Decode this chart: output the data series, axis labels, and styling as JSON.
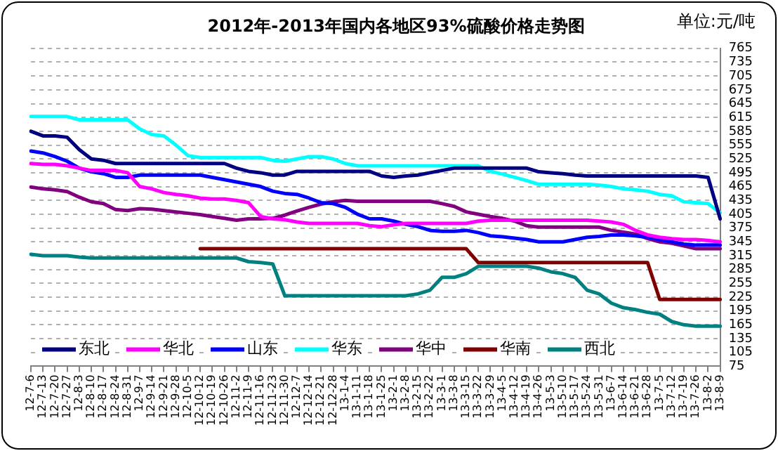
{
  "chart_data": {
    "type": "line",
    "title": "2012年-2013年国内各地区93%硫酸价格走势图",
    "annotations": [
      "单位:元/吨"
    ],
    "categories": [
      "12-7-6",
      "12-7-13",
      "12-7-20",
      "12-7-27",
      "12-8-3",
      "12-8-10",
      "12-8-17",
      "12-8-24",
      "12-8-31",
      "12-9-7",
      "12-9-14",
      "12-9-21",
      "12-9-28",
      "12-10-5",
      "12-10-12",
      "12-10-19",
      "12-10-26",
      "12-11-2",
      "12-11-9",
      "12-11-16",
      "12-11-23",
      "12-11-30",
      "12-12-7",
      "12-12-14",
      "12-12-21",
      "12-12-28",
      "13-1-4",
      "13-1-11",
      "13-1-18",
      "13-1-25",
      "13-2-1",
      "13-2-8",
      "13-2-15",
      "13-2-22",
      "13-3-1",
      "13-3-8",
      "13-3-15",
      "13-3-22",
      "13-3-29",
      "13-4-5",
      "13-4-12",
      "13-4-19",
      "13-4-26",
      "13-5-3",
      "13-5-10",
      "13-5-17",
      "13-5-24",
      "13-5-31",
      "13-6-7",
      "13-6-14",
      "13-6-21",
      "13-6-28",
      "13-7-5",
      "13-7-12",
      "13-7-19",
      "13-7-26",
      "13-8-2",
      "13-8-9"
    ],
    "series": [
      {
        "name": "东北",
        "color": "#000080",
        "values": [
          585,
          575,
          575,
          572,
          545,
          525,
          522,
          515,
          515,
          515,
          515,
          515,
          515,
          515,
          515,
          515,
          515,
          505,
          498,
          495,
          490,
          490,
          498,
          498,
          498,
          498,
          498,
          498,
          498,
          488,
          485,
          488,
          490,
          495,
          500,
          505,
          505,
          505,
          505,
          505,
          505,
          505,
          497,
          495,
          493,
          490,
          488,
          488,
          488,
          488,
          488,
          488,
          488,
          488,
          488,
          488,
          485,
          395
        ]
      },
      {
        "name": "华北",
        "color": "#ff00ff",
        "values": [
          515,
          513,
          513,
          510,
          505,
          500,
          500,
          500,
          495,
          465,
          460,
          452,
          448,
          445,
          440,
          438,
          438,
          435,
          430,
          400,
          395,
          393,
          388,
          385,
          385,
          385,
          385,
          385,
          380,
          378,
          382,
          385,
          385,
          385,
          385,
          385,
          385,
          390,
          392,
          392,
          392,
          392,
          392,
          392,
          392,
          392,
          392,
          390,
          388,
          383,
          370,
          360,
          355,
          352,
          350,
          350,
          348,
          345
        ]
      },
      {
        "name": "山东",
        "color": "#0000ff",
        "values": [
          542,
          538,
          530,
          520,
          505,
          497,
          493,
          485,
          485,
          490,
          490,
          490,
          490,
          490,
          490,
          485,
          480,
          475,
          470,
          465,
          455,
          450,
          448,
          440,
          430,
          428,
          420,
          405,
          395,
          395,
          390,
          383,
          378,
          370,
          368,
          368,
          370,
          365,
          358,
          356,
          353,
          350,
          345,
          345,
          345,
          350,
          355,
          357,
          360,
          360,
          358,
          355,
          350,
          345,
          340,
          338,
          338,
          338
        ]
      },
      {
        "name": "华东",
        "color": "#00ffff",
        "values": [
          617,
          617,
          617,
          617,
          610,
          610,
          610,
          610,
          610,
          590,
          578,
          575,
          555,
          532,
          528,
          528,
          528,
          528,
          528,
          528,
          522,
          520,
          525,
          530,
          530,
          525,
          515,
          510,
          510,
          510,
          510,
          510,
          510,
          510,
          510,
          510,
          510,
          510,
          498,
          492,
          485,
          478,
          470,
          470,
          470,
          470,
          470,
          468,
          465,
          460,
          458,
          455,
          448,
          445,
          432,
          430,
          428,
          408
        ]
      },
      {
        "name": "华中",
        "color": "#800080",
        "values": [
          464,
          460,
          458,
          454,
          442,
          432,
          428,
          415,
          413,
          417,
          416,
          413,
          410,
          407,
          404,
          400,
          396,
          392,
          395,
          395,
          396,
          403,
          412,
          420,
          427,
          432,
          435,
          433,
          433,
          433,
          433,
          433,
          433,
          433,
          428,
          422,
          410,
          405,
          400,
          396,
          390,
          380,
          377,
          377,
          377,
          377,
          377,
          377,
          370,
          366,
          362,
          352,
          345,
          342,
          336,
          330,
          330,
          330
        ]
      },
      {
        "name": "华南",
        "color": "#800000",
        "values": [
          null,
          null,
          null,
          null,
          null,
          null,
          null,
          null,
          null,
          null,
          null,
          null,
          null,
          null,
          330,
          330,
          330,
          330,
          330,
          330,
          330,
          330,
          330,
          330,
          330,
          330,
          330,
          330,
          330,
          330,
          330,
          330,
          330,
          330,
          330,
          330,
          330,
          300,
          300,
          300,
          300,
          300,
          300,
          300,
          300,
          300,
          300,
          300,
          300,
          300,
          300,
          300,
          220,
          220,
          220,
          220,
          220,
          220
        ]
      },
      {
        "name": "西北",
        "color": "#008080",
        "values": [
          318,
          315,
          315,
          315,
          312,
          310,
          310,
          310,
          310,
          310,
          310,
          310,
          310,
          310,
          310,
          310,
          310,
          310,
          302,
          300,
          297,
          228,
          228,
          228,
          228,
          228,
          228,
          228,
          228,
          228,
          228,
          228,
          232,
          240,
          268,
          268,
          276,
          292,
          292,
          292,
          292,
          292,
          288,
          280,
          276,
          268,
          240,
          232,
          212,
          202,
          198,
          192,
          188,
          172,
          165,
          162,
          162,
          162
        ]
      }
    ],
    "ylim": [
      75,
      765
    ],
    "yticks": [
      75,
      105,
      135,
      165,
      195,
      225,
      255,
      285,
      315,
      345,
      375,
      405,
      435,
      465,
      495,
      525,
      555,
      585,
      615,
      645,
      675,
      705,
      735,
      765
    ],
    "grid": "y",
    "legend": "bottom",
    "marker": "none",
    "line_style": "solid"
  }
}
